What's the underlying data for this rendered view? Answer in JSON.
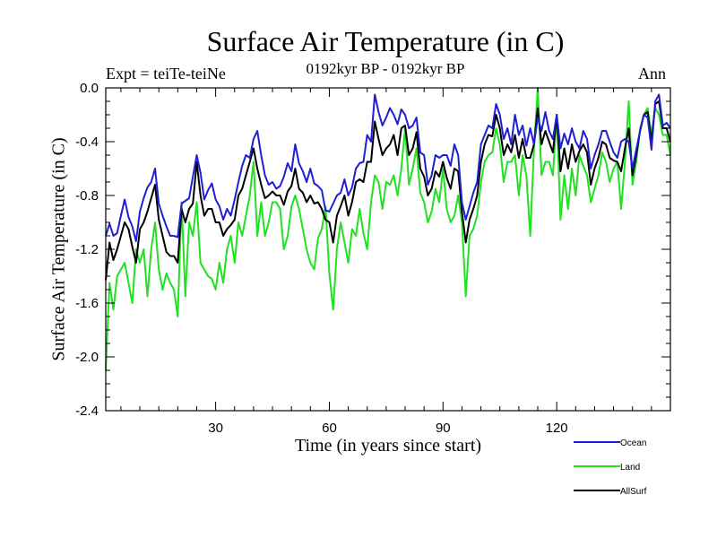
{
  "chart_data": {
    "type": "line",
    "title": "Surface Air Temperature (in C)",
    "subtitle": "0192kyr BP - 0192kyr BP",
    "expt_label": "Expt = teiTe-teiNe",
    "season_label": "Ann",
    "xlabel": "Time (in years since start)",
    "ylabel": "Surface Air Temperature (in C)",
    "xlim": [
      1,
      150
    ],
    "ylim": [
      -2.4,
      0.0
    ],
    "x_ticks": [
      30,
      60,
      90,
      120
    ],
    "y_ticks": [
      "0.0",
      "-0.4",
      "-0.8",
      "-1.2",
      "-1.6",
      "-2.0",
      "-2.4"
    ],
    "grid": false,
    "legend_position": "bottom-right, outside plot",
    "x_start": 1,
    "series": [
      {
        "name": "Ocean",
        "color": "#1f1fd4",
        "values": [
          -1.1,
          -1.01,
          -1.1,
          -1.08,
          -0.95,
          -0.83,
          -0.96,
          -1.03,
          -1.14,
          -0.92,
          -0.82,
          -0.74,
          -0.7,
          -0.6,
          -0.86,
          -0.95,
          -1.03,
          -1.1,
          -1.1,
          -1.11,
          -0.86,
          -0.84,
          -0.82,
          -0.66,
          -0.5,
          -0.63,
          -0.83,
          -0.76,
          -0.71,
          -0.83,
          -0.88,
          -0.98,
          -0.9,
          -0.95,
          -0.83,
          -0.7,
          -0.58,
          -0.5,
          -0.52,
          -0.38,
          -0.32,
          -0.5,
          -0.65,
          -0.72,
          -0.7,
          -0.75,
          -0.73,
          -0.66,
          -0.56,
          -0.62,
          -0.42,
          -0.56,
          -0.62,
          -0.7,
          -0.6,
          -0.71,
          -0.73,
          -0.76,
          -0.91,
          -0.92,
          -0.86,
          -0.8,
          -0.78,
          -0.68,
          -0.8,
          -0.74,
          -0.6,
          -0.56,
          -0.55,
          -0.35,
          -0.4,
          -0.05,
          -0.18,
          -0.28,
          -0.22,
          -0.15,
          -0.2,
          -0.27,
          -0.16,
          -0.2,
          -0.3,
          -0.28,
          -0.22,
          -0.48,
          -0.5,
          -0.72,
          -0.65,
          -0.5,
          -0.52,
          -0.5,
          -0.5,
          -0.58,
          -0.42,
          -0.5,
          -0.85,
          -0.98,
          -0.88,
          -0.78,
          -0.7,
          -0.42,
          -0.35,
          -0.28,
          -0.3,
          -0.12,
          -0.2,
          -0.38,
          -0.3,
          -0.42,
          -0.2,
          -0.35,
          -0.28,
          -0.43,
          -0.3,
          -0.42,
          -0.22,
          -0.32,
          -0.18,
          -0.32,
          -0.38,
          -0.2,
          -0.45,
          -0.34,
          -0.42,
          -0.3,
          -0.4,
          -0.45,
          -0.32,
          -0.38,
          -0.6,
          -0.5,
          -0.42,
          -0.32,
          -0.32,
          -0.4,
          -0.48,
          -0.52,
          -0.4,
          -0.38,
          -0.4,
          -0.6,
          -0.46,
          -0.32,
          -0.2,
          -0.22,
          -0.46,
          -0.1,
          -0.05,
          -0.28,
          -0.26,
          -0.3
        ]
      },
      {
        "name": "Land",
        "color": "#22e022",
        "values": [
          -2.1,
          -1.45,
          -1.65,
          -1.4,
          -1.35,
          -1.3,
          -1.45,
          -1.6,
          -1.2,
          -1.3,
          -1.2,
          -1.55,
          -1.2,
          -1.0,
          -1.35,
          -1.5,
          -1.38,
          -1.45,
          -1.5,
          -1.7,
          -0.85,
          -1.55,
          -1.0,
          -1.1,
          -0.85,
          -1.3,
          -1.35,
          -1.4,
          -1.42,
          -1.5,
          -1.3,
          -1.45,
          -1.2,
          -1.1,
          -1.3,
          -1.0,
          -1.1,
          -0.95,
          -0.8,
          -0.55,
          -1.1,
          -0.85,
          -1.1,
          -1.0,
          -0.85,
          -0.85,
          -0.9,
          -1.2,
          -1.1,
          -0.88,
          -0.8,
          -0.9,
          -1.05,
          -1.2,
          -1.3,
          -1.35,
          -1.12,
          -1.05,
          -0.88,
          -1.38,
          -1.65,
          -1.2,
          -1.0,
          -1.15,
          -1.3,
          -1.05,
          -1.1,
          -0.9,
          -1.08,
          -1.2,
          -0.85,
          -0.65,
          -0.7,
          -0.9,
          -0.7,
          -0.72,
          -0.65,
          -0.8,
          -0.6,
          -0.3,
          -0.72,
          -0.6,
          -0.45,
          -0.78,
          -0.85,
          -1.0,
          -0.92,
          -0.75,
          -0.85,
          -0.6,
          -0.9,
          -1.0,
          -0.95,
          -0.8,
          -1.0,
          -1.55,
          -1.1,
          -1.05,
          -0.95,
          -0.7,
          -0.55,
          -0.5,
          -0.48,
          -0.3,
          -0.42,
          -0.7,
          -0.55,
          -0.55,
          -0.5,
          -0.8,
          -0.5,
          -0.65,
          -1.1,
          -0.45,
          -0.0,
          -0.65,
          -0.55,
          -0.55,
          -0.65,
          -0.2,
          -0.98,
          -0.65,
          -0.9,
          -0.6,
          -0.8,
          -0.5,
          -0.58,
          -0.65,
          -0.85,
          -0.75,
          -0.65,
          -0.48,
          -0.55,
          -0.7,
          -0.6,
          -0.55,
          -0.9,
          -0.55,
          -0.1,
          -0.72,
          -0.55,
          -0.3,
          -0.2,
          -0.15,
          -0.35,
          -0.15,
          -0.2,
          -0.35,
          -0.35,
          -0.5
        ]
      },
      {
        "name": "AllSurf",
        "color": "#000000",
        "values": [
          -1.43,
          -1.15,
          -1.28,
          -1.2,
          -1.1,
          -1.0,
          -1.05,
          -1.18,
          -1.3,
          -1.05,
          -1.0,
          -0.92,
          -0.82,
          -0.72,
          -0.98,
          -1.1,
          -1.22,
          -1.25,
          -1.25,
          -1.3,
          -0.9,
          -1.0,
          -0.9,
          -0.86,
          -0.55,
          -0.8,
          -0.95,
          -0.9,
          -0.9,
          -1.0,
          -1.0,
          -1.1,
          -1.05,
          -1.02,
          -0.98,
          -0.8,
          -0.75,
          -0.65,
          -0.55,
          -0.45,
          -0.6,
          -0.72,
          -0.82,
          -0.8,
          -0.77,
          -0.8,
          -0.8,
          -0.87,
          -0.77,
          -0.73,
          -0.6,
          -0.75,
          -0.78,
          -0.85,
          -0.8,
          -0.86,
          -0.85,
          -0.9,
          -0.98,
          -1.0,
          -1.15,
          -0.95,
          -0.88,
          -0.8,
          -0.95,
          -0.85,
          -0.7,
          -0.68,
          -0.7,
          -0.55,
          -0.55,
          -0.25,
          -0.38,
          -0.5,
          -0.45,
          -0.42,
          -0.35,
          -0.5,
          -0.3,
          -0.28,
          -0.5,
          -0.45,
          -0.33,
          -0.6,
          -0.66,
          -0.8,
          -0.75,
          -0.62,
          -0.66,
          -0.55,
          -0.67,
          -0.75,
          -0.6,
          -0.62,
          -0.92,
          -1.15,
          -0.98,
          -0.9,
          -0.8,
          -0.55,
          -0.42,
          -0.35,
          -0.36,
          -0.2,
          -0.3,
          -0.5,
          -0.42,
          -0.48,
          -0.35,
          -0.52,
          -0.38,
          -0.52,
          -0.52,
          -0.42,
          -0.15,
          -0.42,
          -0.32,
          -0.4,
          -0.48,
          -0.2,
          -0.62,
          -0.45,
          -0.6,
          -0.42,
          -0.55,
          -0.47,
          -0.42,
          -0.48,
          -0.72,
          -0.6,
          -0.52,
          -0.4,
          -0.42,
          -0.52,
          -0.54,
          -0.55,
          -0.62,
          -0.45,
          -0.3,
          -0.65,
          -0.5,
          -0.32,
          -0.2,
          -0.18,
          -0.4,
          -0.12,
          -0.1,
          -0.3,
          -0.3,
          -0.4
        ]
      }
    ]
  }
}
